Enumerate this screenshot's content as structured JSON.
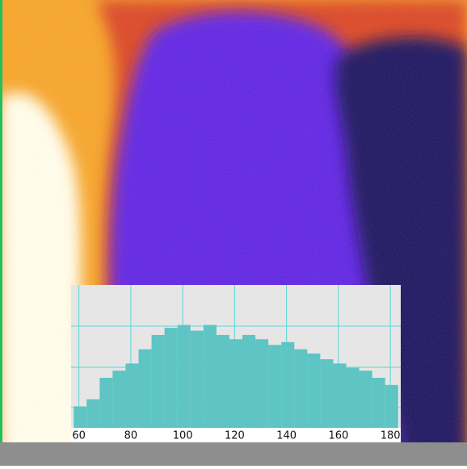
{
  "chart_data": {
    "type": "histogram",
    "bins": [
      58,
      63,
      68,
      73,
      78,
      83,
      88,
      93,
      98,
      103,
      108,
      113,
      118,
      123,
      128,
      133,
      138,
      143,
      148,
      153,
      158,
      163,
      168,
      173,
      178,
      183
    ],
    "values": [
      15,
      20,
      35,
      40,
      45,
      55,
      65,
      70,
      72,
      68,
      72,
      65,
      62,
      65,
      62,
      58,
      60,
      55,
      52,
      48,
      45,
      42,
      40,
      35,
      30
    ],
    "color": "#5ec4c4",
    "xlim": [
      57,
      184
    ],
    "xticks": [
      60,
      80,
      100,
      120,
      140,
      160,
      180
    ],
    "ylim": [
      0,
      100
    ],
    "grid": true
  }
}
